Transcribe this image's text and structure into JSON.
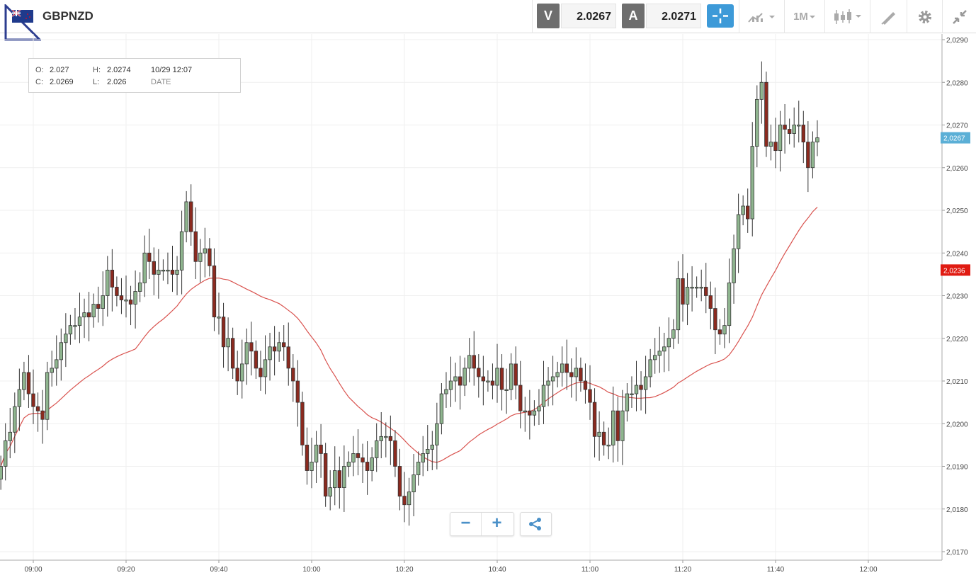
{
  "header": {
    "symbol": "GBPNZD",
    "sell_label": "V",
    "sell_price": "2.0267",
    "buy_label": "A",
    "buy_price": "2.0271",
    "timeframe": "1M",
    "icons": [
      "flag-icon",
      "crosshair-icon",
      "line-chart-type-icon",
      "candlestick-type-icon",
      "drawing-tools-icon",
      "settings-gear-icon",
      "fullscreen-collapse-icon"
    ]
  },
  "ohlc_box": {
    "o_label": "O:",
    "o_value": "2.027",
    "h_label": "H:",
    "h_value": "2.0274",
    "c_label": "C:",
    "c_value": "2.0269",
    "l_label": "L:",
    "l_value": "2.026",
    "datetime": "10/29 12:07",
    "date_label": "DATE"
  },
  "controls": {
    "zoom_out": "−",
    "zoom_in": "+",
    "share": "share-icon"
  },
  "colors": {
    "bull": "#8fb58f",
    "bear": "#8b2a1f",
    "ma": "#d9534f",
    "last_price_tag": "#5bafd6",
    "ma_tag": "#e01b12",
    "accent": "#3d9ad8"
  },
  "chart_data": {
    "type": "candlestick",
    "title": "GBPNZD",
    "x_ticks": [
      "09:00",
      "09:20",
      "09:40",
      "10:00",
      "10:20",
      "10:40",
      "11:00",
      "11:20",
      "11:40",
      "12:00"
    ],
    "y_ticks": [
      "2,0290",
      "2,0280",
      "2,0270",
      "2,0260",
      "2,0250",
      "2,0240",
      "2,0230",
      "2,0220",
      "2,0210",
      "2,0200",
      "2,0190",
      "2,0180",
      "2,0170"
    ],
    "ylim": [
      2.0168,
      2.0291
    ],
    "grid": true,
    "last_price": "2,0267",
    "ma_last_value": "2,0236",
    "closes": [
      2.019,
      2.0196,
      2.0198,
      2.0204,
      2.0208,
      2.0212,
      2.0207,
      2.0204,
      2.0203,
      2.0201,
      2.0212,
      2.0213,
      2.0215,
      2.0219,
      2.0221,
      2.0223,
      2.0223,
      2.0225,
      2.0226,
      2.0225,
      2.0228,
      2.0227,
      2.023,
      2.0236,
      2.0232,
      2.023,
      2.0229,
      2.0229,
      2.0228,
      2.0231,
      2.0233,
      2.024,
      2.0238,
      2.0235,
      2.0236,
      2.0236,
      2.0236,
      2.0235,
      2.0236,
      2.0245,
      2.0252,
      2.0245,
      2.0238,
      2.024,
      2.0241,
      2.0237,
      2.0225,
      2.0225,
      2.0218,
      2.022,
      2.0213,
      2.021,
      2.0214,
      2.0219,
      2.0217,
      2.0213,
      2.0211,
      2.0215,
      2.0218,
      2.0217,
      2.0219,
      2.0218,
      2.0213,
      2.021,
      2.0205,
      2.0195,
      2.0189,
      2.0191,
      2.0195,
      2.0193,
      2.0183,
      2.0185,
      2.0189,
      2.0185,
      2.019,
      2.0191,
      2.0193,
      2.0192,
      2.0191,
      2.0189,
      2.0192,
      2.0196,
      2.0197,
      2.0197,
      2.0196,
      2.019,
      2.0183,
      2.0181,
      2.0184,
      2.0188,
      2.0191,
      2.0193,
      2.0194,
      2.0195,
      2.02,
      2.0207,
      2.0208,
      2.021,
      2.0211,
      2.0209,
      2.0213,
      2.0216,
      2.0213,
      2.0211,
      2.021,
      2.021,
      2.0209,
      2.0213,
      2.0208,
      2.0208,
      2.0214,
      2.0209,
      2.0203,
      2.0203,
      2.0202,
      2.0203,
      2.0204,
      2.0209,
      2.021,
      2.0211,
      2.0212,
      2.0214,
      2.0212,
      2.0211,
      2.0213,
      2.021,
      2.0208,
      2.0205,
      2.0197,
      2.0198,
      2.0195,
      2.0195,
      2.0203,
      2.0196,
      2.0203,
      2.0207,
      2.0207,
      2.0209,
      2.0208,
      2.0211,
      2.0215,
      2.0216,
      2.0217,
      2.0218,
      2.022,
      2.0222,
      2.0234,
      2.0228,
      2.0232,
      2.0232,
      2.0232,
      2.0232,
      2.023,
      2.0227,
      2.0222,
      2.0221,
      2.0223,
      2.0233,
      2.0241,
      2.0249,
      2.0251,
      2.0248,
      2.0265,
      2.0276,
      2.028,
      2.0265,
      2.0266,
      2.0264,
      2.027,
      2.0269,
      2.0268,
      2.027,
      2.027,
      2.0266,
      2.026,
      2.0266,
      2.0267
    ]
  }
}
